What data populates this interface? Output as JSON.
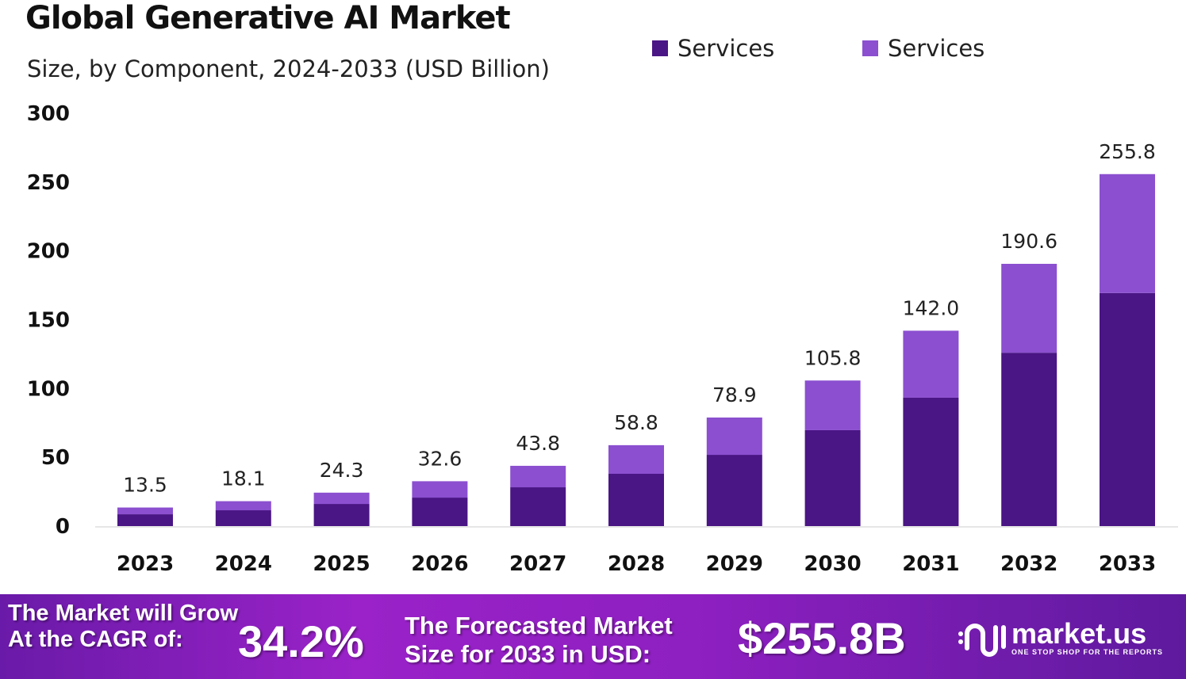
{
  "chart_data": {
    "type": "bar",
    "stacked": true,
    "title": "Global Generative AI Market",
    "subtitle": "Size, by Component, 2024-2033 (USD Billion)",
    "categories": [
      "2023",
      "2024",
      "2025",
      "2026",
      "2027",
      "2028",
      "2029",
      "2030",
      "2031",
      "2032",
      "2033"
    ],
    "series": [
      {
        "name": "Services",
        "color": "#4a1585",
        "values": [
          8.6,
          11.5,
          16.1,
          20.7,
          28.2,
          38.0,
          51.8,
          69.7,
          93.3,
          126.0,
          169.4
        ]
      },
      {
        "name": "Services",
        "color": "#8b4fd0",
        "values": [
          4.9,
          6.6,
          8.2,
          11.9,
          15.6,
          20.8,
          27.1,
          36.1,
          48.7,
          64.6,
          86.4
        ]
      }
    ],
    "totals": [
      "13.5",
      "18.1",
      "24.3",
      "32.6",
      "43.8",
      "58.8",
      "78.9",
      "105.8",
      "142.0",
      "190.6",
      "255.8"
    ],
    "ylim": [
      0,
      300
    ],
    "yticks": [
      "0",
      "50",
      "100",
      "150",
      "200",
      "250",
      "300"
    ],
    "grid": false,
    "legend_position": "top-right"
  },
  "banner": {
    "cagr_label_1": "The Market will Grow",
    "cagr_label_2": "At the CAGR of:",
    "cagr_value": "34.2%",
    "forecast_label_1": "The Forecasted Market",
    "forecast_label_2": "Size for 2033 in USD:",
    "forecast_value": "$255.8B",
    "logo_name": "market.us",
    "logo_tagline": "ONE STOP SHOP FOR THE REPORTS"
  }
}
